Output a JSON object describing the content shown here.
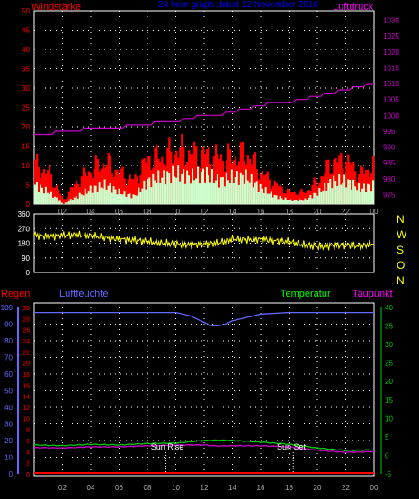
{
  "header": {
    "left_label": "Windstärke",
    "center_label": "24 hour graph dated 12 November 2016",
    "right_label": "Luftdruck"
  },
  "compass": [
    "N",
    "W",
    "S",
    "O",
    "N"
  ],
  "lower_header": {
    "regen": "Regen",
    "luftfeuchte": "Luftfeuchte",
    "temperatur": "Temperatur",
    "taupunkt": "Taupunkt"
  },
  "annotations": {
    "sun_rise": "Sun Rise",
    "sun_set": "Sun Set"
  },
  "colors": {
    "wind_gust": "#ff0000",
    "wind_avg": "#ccffcc",
    "pressure": "#cc00cc",
    "direction": "#ffff00",
    "humidity": "#6666ff",
    "temperature": "#00cc00",
    "dewpoint": "#cc00cc",
    "rain": "#ff0000",
    "grid": "#ffffff"
  },
  "chart_data": [
    {
      "type": "area",
      "xticks": [
        "02",
        "04",
        "06",
        "08",
        "10",
        "12",
        "14",
        "16",
        "18",
        "20",
        "22",
        "00"
      ],
      "y_left_ticks": [
        0,
        5,
        10,
        15,
        20,
        25,
        30,
        35,
        40,
        45,
        50
      ],
      "y_right_ticks": [
        975,
        980,
        985,
        990,
        995,
        1000,
        1005,
        1010,
        1015,
        1020,
        1025,
        1030
      ],
      "ylim_left": [
        0,
        50
      ],
      "ylim_right": [
        972,
        1033
      ],
      "series": [
        {
          "role": "gust",
          "t": [
            0,
            1,
            2,
            3,
            4,
            5,
            6,
            7,
            8,
            9,
            10,
            11,
            12,
            13,
            14,
            15,
            16,
            17,
            18,
            19,
            20,
            21,
            22,
            23,
            24
          ],
          "values": [
            10,
            8,
            1,
            6,
            9,
            11,
            8,
            6,
            12,
            12,
            14,
            13,
            13,
            12,
            12,
            13,
            8,
            5,
            3,
            3,
            6,
            11,
            11,
            8,
            10
          ]
        },
        {
          "role": "avg",
          "t": [
            0,
            1,
            2,
            3,
            4,
            5,
            6,
            7,
            8,
            9,
            10,
            11,
            12,
            13,
            14,
            15,
            16,
            17,
            18,
            19,
            20,
            21,
            22,
            23,
            24
          ],
          "values": [
            5,
            3,
            0,
            2,
            4,
            5,
            3,
            2,
            6,
            7,
            8,
            7,
            8,
            6,
            7,
            7,
            4,
            2,
            1,
            1,
            3,
            6,
            6,
            4,
            5
          ]
        },
        {
          "role": "pressure",
          "t": [
            0,
            1,
            2,
            3,
            4,
            5,
            6,
            7,
            8,
            9,
            10,
            11,
            12,
            13,
            14,
            15,
            16,
            17,
            18,
            19,
            20,
            21,
            22,
            23,
            24
          ],
          "values": [
            994,
            994,
            995,
            995,
            996,
            996,
            996,
            997,
            997,
            998,
            998,
            999,
            1000,
            1000,
            1001,
            1002,
            1003,
            1004,
            1004,
            1005,
            1006,
            1007,
            1008,
            1009,
            1010
          ]
        }
      ]
    },
    {
      "type": "line",
      "yticks": [
        0,
        90,
        180,
        270,
        360
      ],
      "ylim": [
        0,
        360
      ],
      "series": [
        {
          "role": "direction",
          "t": [
            0,
            1,
            2,
            3,
            4,
            5,
            6,
            7,
            8,
            9,
            10,
            11,
            12,
            13,
            14,
            15,
            16,
            17,
            18,
            19,
            20,
            21,
            22,
            23,
            24
          ],
          "values": [
            230,
            220,
            230,
            230,
            225,
            215,
            205,
            200,
            190,
            180,
            175,
            170,
            175,
            180,
            205,
            200,
            205,
            195,
            190,
            170,
            160,
            165,
            170,
            160,
            180
          ]
        }
      ]
    },
    {
      "type": "line",
      "xticks": [
        "02",
        "04",
        "06",
        "08",
        "10",
        "12",
        "14",
        "16",
        "18",
        "20",
        "22",
        "00"
      ],
      "y_left_ticks": [
        0,
        10,
        20,
        30,
        40,
        50,
        60,
        70,
        80,
        90,
        100
      ],
      "y_mid_ticks": [
        0,
        2,
        4,
        6,
        8,
        10,
        12,
        14,
        16,
        18,
        20,
        22,
        24,
        26,
        28,
        30
      ],
      "y_right_ticks": [
        -5,
        0,
        5,
        10,
        15,
        20,
        25,
        30,
        35,
        40
      ],
      "ylim_left": [
        0,
        100
      ],
      "ylim_right": [
        -5,
        40
      ],
      "series": [
        {
          "role": "humidity",
          "t": [
            0,
            2,
            4,
            6,
            8,
            10,
            11,
            12,
            12.5,
            13,
            13.5,
            14,
            15,
            16,
            18,
            20,
            22,
            24
          ],
          "values": [
            97,
            97,
            97,
            97,
            97,
            97,
            95,
            91,
            89,
            89,
            90,
            92,
            94,
            96,
            97,
            97,
            97,
            97
          ]
        },
        {
          "role": "temperature",
          "t": [
            0,
            2,
            4,
            6,
            8,
            10,
            12,
            13,
            14,
            16,
            18,
            20,
            22,
            24
          ],
          "values": [
            2.8,
            2.6,
            3.0,
            2.8,
            3.2,
            3.3,
            4.0,
            4.1,
            4.0,
            3.6,
            3.0,
            2.0,
            1.3,
            1.5
          ]
        },
        {
          "role": "dewpoint",
          "t": [
            0,
            2,
            4,
            6,
            8,
            10,
            12,
            13,
            14,
            16,
            18,
            20,
            22,
            24
          ],
          "values": [
            2.1,
            2.0,
            2.3,
            2.3,
            2.6,
            2.8,
            2.8,
            2.5,
            2.6,
            2.6,
            2.3,
            1.4,
            0.8,
            1.0
          ]
        },
        {
          "role": "rain",
          "t": [
            0,
            24
          ],
          "values": [
            0,
            0
          ]
        }
      ],
      "sunrise": 9.3,
      "sunset": 18.3
    }
  ]
}
